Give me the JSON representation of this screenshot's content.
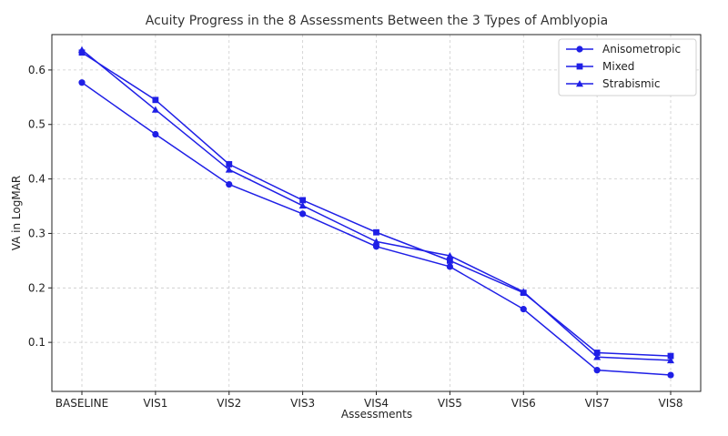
{
  "chart_data": {
    "type": "line",
    "title": "Acuity Progress in the 8 Assessments Between the 3 Types of Amblyopia",
    "xlabel": "Assessments",
    "ylabel": "VA in LogMAR",
    "categories": [
      "BASELINE",
      "VIS1",
      "VIS2",
      "VIS3",
      "VIS4",
      "VIS5",
      "VIS6",
      "VIS7",
      "VIS8"
    ],
    "ylim": [
      0.01,
      0.665
    ],
    "yticks": [
      0.1,
      0.2,
      0.3,
      0.4,
      0.5,
      0.6
    ],
    "ytick_labels": [
      "0.1",
      "0.2",
      "0.3",
      "0.4",
      "0.5",
      "0.6"
    ],
    "grid": true,
    "legend_position": "top-right",
    "series": [
      {
        "name": "Anisometropic",
        "marker": "circle",
        "color": "#1f1fe6",
        "values": [
          0.577,
          0.482,
          0.39,
          0.336,
          0.276,
          0.239,
          0.161,
          0.049,
          0.04
        ]
      },
      {
        "name": "Mixed",
        "marker": "square",
        "color": "#1f1fe6",
        "values": [
          0.632,
          0.545,
          0.427,
          0.361,
          0.302,
          0.25,
          0.191,
          0.081,
          0.075
        ]
      },
      {
        "name": "Strabismic",
        "marker": "triangle",
        "color": "#1f1fe6",
        "values": [
          0.637,
          0.527,
          0.417,
          0.351,
          0.285,
          0.259,
          0.193,
          0.073,
          0.067
        ]
      }
    ]
  }
}
